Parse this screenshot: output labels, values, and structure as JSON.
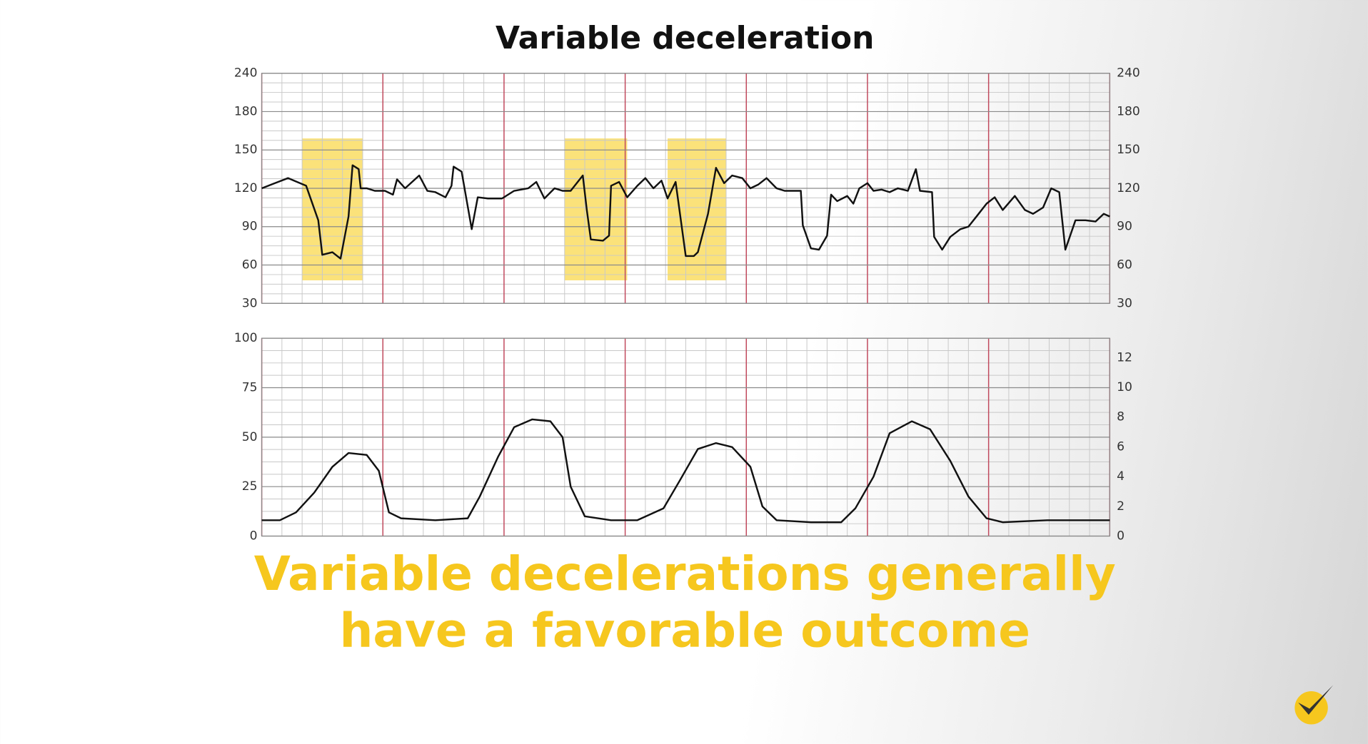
{
  "title": "Variable deceleration",
  "caption": [
    "Variable decelerations generally",
    "have a favorable outcome"
  ],
  "chart_data": [
    {
      "type": "line",
      "xlim": [
        0,
        42
      ],
      "ylim": [
        30,
        240
      ],
      "yticks": [
        30,
        60,
        90,
        120,
        150,
        180,
        240
      ],
      "y2ticks": [
        30,
        60,
        90,
        120,
        150,
        180,
        240
      ],
      "highlights": [
        {
          "x": [
            2.0,
            5.0
          ],
          "y": [
            48,
            159
          ]
        },
        {
          "x": [
            15.0,
            18.1
          ],
          "y": [
            48,
            159
          ]
        },
        {
          "x": [
            20.1,
            23.0
          ],
          "y": [
            48,
            159
          ]
        }
      ],
      "highlight_color": "#fbe27a",
      "x": [
        0,
        1.3,
        2.2,
        2.8,
        3.0,
        3.5,
        3.9,
        4.3,
        4.5,
        4.8,
        4.9,
        5.2,
        5.6,
        6.1,
        6.5,
        6.7,
        7.1,
        7.8,
        8.2,
        8.6,
        9.1,
        9.4,
        9.5,
        9.9,
        10.4,
        10.7,
        11.2,
        11.9,
        12.5,
        13.2,
        13.6,
        14.0,
        14.5,
        14.9,
        15.3,
        15.9,
        16.1,
        16.3,
        16.9,
        17.2,
        17.3,
        17.7,
        18.1,
        18.6,
        19.0,
        19.4,
        19.8,
        20.1,
        20.5,
        21.0,
        21.4,
        21.6,
        22.1,
        22.5,
        22.9,
        23.3,
        23.8,
        24.2,
        24.6,
        25.0,
        25.5,
        25.9,
        26.7,
        26.8,
        27.2,
        27.6,
        28.0,
        28.2,
        28.5,
        29.0,
        29.3,
        29.6,
        30.0,
        30.3,
        30.7,
        31.1,
        31.5,
        32.0,
        32.4,
        32.6,
        33.2,
        33.3,
        33.7,
        34.1,
        34.6,
        35.0,
        35.4,
        35.9,
        36.3,
        36.7,
        37.3,
        37.8,
        38.2,
        38.7,
        39.1,
        39.5,
        39.8,
        40.3,
        40.8,
        41.3,
        41.7,
        42.0
      ],
      "series": [
        {
          "color": "#111111",
          "values": [
            120,
            128,
            122,
            95,
            68,
            70,
            65,
            98,
            138,
            135,
            120,
            120,
            118,
            118,
            115,
            127,
            120,
            130,
            118,
            117,
            113,
            122,
            137,
            133,
            88,
            113,
            112,
            112,
            118,
            120,
            125,
            112,
            120,
            118,
            118,
            130,
            103,
            80,
            79,
            83,
            122,
            125,
            113,
            122,
            128,
            120,
            126,
            112,
            125,
            67,
            67,
            70,
            100,
            136,
            124,
            130,
            128,
            120,
            123,
            128,
            120,
            118,
            118,
            91,
            73,
            72,
            83,
            115,
            110,
            114,
            108,
            120,
            124,
            118,
            119,
            117,
            120,
            118,
            135,
            118,
            117,
            82,
            72,
            82,
            88,
            90,
            98,
            108,
            113,
            103,
            114,
            103,
            100,
            105,
            120,
            117,
            72,
            95,
            95,
            94,
            100,
            98
          ]
        }
      ]
    },
    {
      "type": "line",
      "xlim": [
        0,
        42
      ],
      "ylim": [
        0,
        100
      ],
      "yticks": [
        0,
        25,
        50,
        75,
        100
      ],
      "y2lim": [
        0,
        13.3
      ],
      "y2ticks": [
        0,
        2,
        4,
        6,
        8,
        10,
        12
      ],
      "x": [
        0,
        0.9,
        1.7,
        2.6,
        3.5,
        4.3,
        5.2,
        5.8,
        6.3,
        6.9,
        8.6,
        10.2,
        10.8,
        11.7,
        12.5,
        13.4,
        14.3,
        14.9,
        15.3,
        16.0,
        17.3,
        18.6,
        19.9,
        20.7,
        21.6,
        22.5,
        23.3,
        24.2,
        24.8,
        25.5,
        27.2,
        28.7,
        29.4,
        30.3,
        31.1,
        32.2,
        33.1,
        34.1,
        35.0,
        35.9,
        36.7,
        38.9,
        42.0
      ],
      "series": [
        {
          "color": "#111111",
          "values": [
            8,
            8,
            12,
            22,
            35,
            42,
            41,
            33,
            12,
            9,
            8,
            9,
            20,
            40,
            55,
            59,
            58,
            50,
            25,
            10,
            8,
            8,
            14,
            28,
            44,
            47,
            45,
            35,
            15,
            8,
            7,
            7,
            14,
            30,
            52,
            58,
            54,
            38,
            20,
            9,
            7,
            8,
            8
          ]
        }
      ]
    }
  ]
}
